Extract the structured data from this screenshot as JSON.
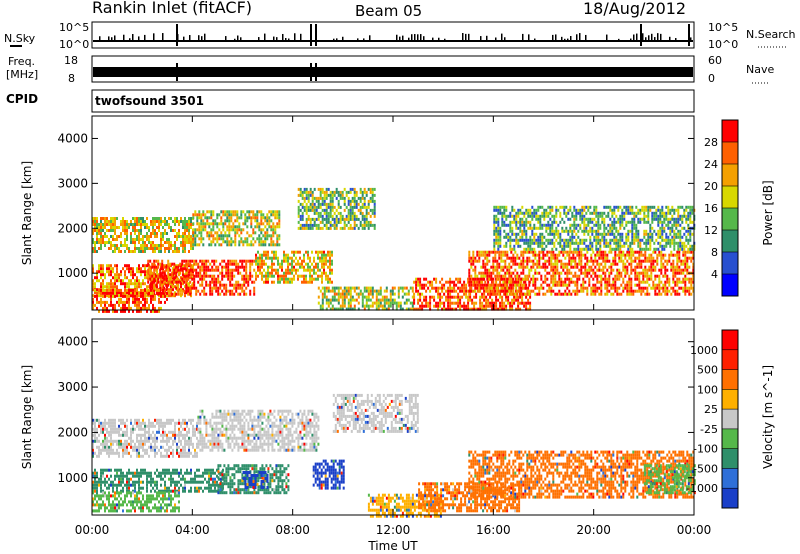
{
  "header": {
    "station": "Rankin Inlet (fitACF)",
    "beam": "Beam 05",
    "date": "18/Aug/2012"
  },
  "nsky_panel": {
    "left_label": "N.Sky",
    "left_ticks": [
      "10^5",
      "10^0"
    ],
    "right_label": "N.Search",
    "right_ticks": [
      "10^5",
      "10^0"
    ]
  },
  "freq_panel": {
    "left_label_1": "Freq.",
    "left_label_2": "[MHz]",
    "left_ticks": [
      "18",
      "8"
    ],
    "right_label": "Nave",
    "right_ticks": [
      "60",
      "0"
    ]
  },
  "cpid": {
    "label": "CPID",
    "value": "twofsound 3501"
  },
  "chart_data": [
    {
      "type": "heatmap",
      "name": "power",
      "ylabel": "Slant Range [km]",
      "xlabel": "",
      "x_ticks": [
        "00:00",
        "04:00",
        "08:00",
        "12:00",
        "16:00",
        "20:00",
        "00:00"
      ],
      "y_ticks": [
        1000,
        2000,
        3000,
        4000
      ],
      "xlim_hours": [
        0,
        24
      ],
      "ylim_km": [
        180,
        4500
      ],
      "colorbar": {
        "label": "Power [dB]",
        "ticks": [
          "4",
          "8",
          "12",
          "16",
          "20",
          "24",
          "28"
        ],
        "colors": [
          "#0000ff",
          "#2850d0",
          "#2f8f6a",
          "#55b84a",
          "#d8d800",
          "#f4a000",
          "#ff6000",
          "#ff0000"
        ]
      },
      "echo_regions": [
        {
          "x": [
            0.0,
            4.0
          ],
          "y": [
            1500,
            2250
          ],
          "level": 0.6
        },
        {
          "x": [
            4.0,
            7.5
          ],
          "y": [
            1600,
            2400
          ],
          "level": 0.55
        },
        {
          "x": [
            0.0,
            4.0
          ],
          "y": [
            500,
            1200
          ],
          "level": 0.75
        },
        {
          "x": [
            2.2,
            6.5
          ],
          "y": [
            500,
            1300
          ],
          "level": 0.9
        },
        {
          "x": [
            6.5,
            9.6
          ],
          "y": [
            800,
            1500
          ],
          "level": 0.65
        },
        {
          "x": [
            8.2,
            11.3
          ],
          "y": [
            2000,
            2900
          ],
          "level": 0.45
        },
        {
          "x": [
            0.0,
            3.0
          ],
          "y": [
            180,
            650
          ],
          "level": 0.85
        },
        {
          "x": [
            9.0,
            12.8
          ],
          "y": [
            180,
            700
          ],
          "level": 0.55
        },
        {
          "x": [
            12.8,
            17.5
          ],
          "y": [
            180,
            900
          ],
          "level": 0.85
        },
        {
          "x": [
            15.0,
            24.0
          ],
          "y": [
            500,
            1500
          ],
          "level": 0.8
        },
        {
          "x": [
            16.0,
            24.0
          ],
          "y": [
            1500,
            2500
          ],
          "level": 0.4
        }
      ]
    },
    {
      "type": "heatmap",
      "name": "velocity",
      "ylabel": "Slant Range [km]",
      "xlabel": "Time UT",
      "x_ticks": [
        "00:00",
        "04:00",
        "08:00",
        "12:00",
        "16:00",
        "20:00",
        "00:00"
      ],
      "y_ticks": [
        1000,
        2000,
        3000,
        4000
      ],
      "xlim_hours": [
        0,
        24
      ],
      "ylim_km": [
        180,
        4500
      ],
      "colorbar": {
        "label": "Velocity [m s^-1]",
        "ticks": [
          "1000",
          "500",
          "100",
          "25",
          "-25",
          "-100",
          "-500",
          "-1000"
        ],
        "colors": [
          "#1a3fc8",
          "#2f6fd8",
          "#2f8f6a",
          "#55b84a",
          "#c8c8c8",
          "#ffb000",
          "#ff7000",
          "#ff2000",
          "#ff0000"
        ]
      },
      "echo_regions": [
        {
          "x": [
            0.0,
            4.2
          ],
          "y": [
            1500,
            2300
          ],
          "color": "#c8c8c8"
        },
        {
          "x": [
            4.2,
            9.0
          ],
          "y": [
            1600,
            2500
          ],
          "color": "#c8c8c8"
        },
        {
          "x": [
            9.6,
            13.0
          ],
          "y": [
            2000,
            2850
          ],
          "color": "#c8c8c8"
        },
        {
          "x": [
            0.0,
            5.2
          ],
          "y": [
            700,
            1200
          ],
          "color": "#2f8f6a"
        },
        {
          "x": [
            5.0,
            7.8
          ],
          "y": [
            700,
            1300
          ],
          "color": "#2f8f6a"
        },
        {
          "x": [
            6.0,
            7.0
          ],
          "y": [
            800,
            1150
          ],
          "color": "#1a3fc8"
        },
        {
          "x": [
            8.8,
            10.0
          ],
          "y": [
            800,
            1400
          ],
          "color": "#1a3fc8"
        },
        {
          "x": [
            0.0,
            3.5
          ],
          "y": [
            300,
            700
          ],
          "color": "#55b84a"
        },
        {
          "x": [
            11.0,
            14.0
          ],
          "y": [
            180,
            650
          ],
          "color": "#ffb000"
        },
        {
          "x": [
            13.0,
            17.0
          ],
          "y": [
            300,
            900
          ],
          "color": "#ff7000"
        },
        {
          "x": [
            15.0,
            24.0
          ],
          "y": [
            600,
            1600
          ],
          "color": "#ff7000"
        },
        {
          "x": [
            22.0,
            24.0
          ],
          "y": [
            700,
            1300
          ],
          "color": "#55b84a"
        }
      ]
    }
  ]
}
